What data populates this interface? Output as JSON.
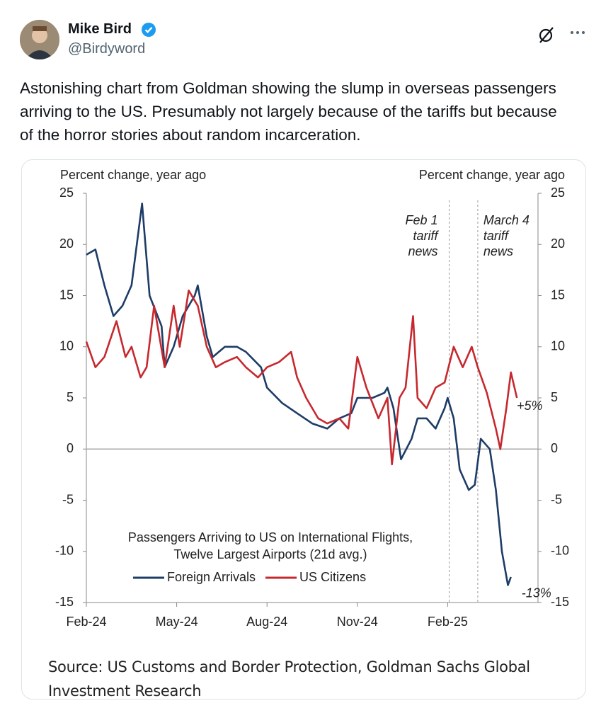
{
  "tweet": {
    "author": "Mike Bird",
    "handle": "@Birdyword",
    "text": "Astonishing chart from Goldman showing the slump in overseas passengers arriving to the US. Presumably not largely because of the tariffs but because of the horror stories about random incarceration."
  },
  "chart_data": {
    "type": "line",
    "y_label": "Percent change, year ago",
    "y2_label": "Percent change, year ago",
    "xlim": [
      0,
      15
    ],
    "xticks": [
      {
        "value": 0,
        "label": "Feb-24"
      },
      {
        "value": 3,
        "label": "May-24"
      },
      {
        "value": 6,
        "label": "Aug-24"
      },
      {
        "value": 9,
        "label": "Nov-24"
      },
      {
        "value": 12,
        "label": "Feb-25"
      }
    ],
    "ylim": [
      -15,
      25
    ],
    "yticks": [
      -15,
      -10,
      -5,
      0,
      5,
      10,
      15,
      20,
      25
    ],
    "y2lim": [
      -15,
      25
    ],
    "y2ticks": [
      -15,
      -10,
      -5,
      0,
      5,
      10,
      15,
      20,
      25
    ],
    "legend_title": [
      "Passengers Arriving to US on International Flights,",
      "Twelve Largest Airports (21d avg.)"
    ],
    "series": [
      {
        "name": "Foreign Arrivals",
        "color": "#1d3c66",
        "x": [
          0,
          0.3,
          0.6,
          0.9,
          1.2,
          1.5,
          1.85,
          2.1,
          2.5,
          2.6,
          2.9,
          3.2,
          3.6,
          3.7,
          4.0,
          4.2,
          4.6,
          5.0,
          5.3,
          5.8,
          6.0,
          6.5,
          7.0,
          7.5,
          8.0,
          8.4,
          8.8,
          9.0,
          9.5,
          9.9,
          10.0,
          10.2,
          10.45,
          10.8,
          11.0,
          11.3,
          11.6,
          11.9,
          12.0,
          12.2,
          12.4,
          12.7,
          12.9,
          13.1,
          13.4,
          13.6,
          13.8,
          14.0,
          14.1
        ],
        "values": [
          19,
          19.5,
          16,
          13,
          14,
          16,
          24,
          15,
          12,
          8,
          10,
          13,
          15,
          16,
          11,
          9,
          10,
          10,
          9.5,
          8,
          6,
          4.5,
          3.5,
          2.5,
          2,
          3,
          3.5,
          5,
          5,
          5.5,
          6,
          4,
          -1,
          1,
          3,
          3,
          2,
          4,
          5,
          3,
          -2,
          -4,
          -3.5,
          1,
          0,
          -4,
          -10,
          -13.3,
          -12.5
        ],
        "end_label": "-13%"
      },
      {
        "name": "US Citizens",
        "color": "#c7282e",
        "x": [
          0,
          0.3,
          0.6,
          1.0,
          1.3,
          1.5,
          1.8,
          2.0,
          2.25,
          2.6,
          2.9,
          3.1,
          3.4,
          3.7,
          4.0,
          4.3,
          4.6,
          5.0,
          5.3,
          5.7,
          6.0,
          6.4,
          6.8,
          7.0,
          7.3,
          7.7,
          8.0,
          8.4,
          8.7,
          9.0,
          9.3,
          9.7,
          10.0,
          10.15,
          10.4,
          10.6,
          10.85,
          11.0,
          11.3,
          11.6,
          11.9,
          12.2,
          12.5,
          12.8,
          13.0,
          13.3,
          13.6,
          13.75,
          13.95,
          14.1,
          14.3
        ],
        "values": [
          10.5,
          8,
          9,
          12.5,
          9,
          10,
          7,
          8,
          14,
          8,
          14,
          10,
          15.5,
          14,
          10,
          8,
          8.5,
          9,
          8,
          7,
          8,
          8.5,
          9.5,
          7,
          5,
          3,
          2.5,
          3,
          2,
          9,
          6,
          3,
          5,
          -1.5,
          5,
          6,
          13,
          5,
          4,
          6,
          6.5,
          10,
          8,
          10,
          8,
          5.5,
          2,
          0,
          4,
          7.5,
          5
        ],
        "end_label": "+5%"
      }
    ],
    "vlines": [
      {
        "x": 12.05,
        "label_lines": [
          "Feb 1",
          "tariff",
          "news"
        ]
      },
      {
        "x": 13.0,
        "label_lines": [
          "March 4",
          "tariff",
          "news"
        ]
      }
    ]
  },
  "source": "Source: US Customs and Border Protection, Goldman Sachs Global Investment Research"
}
